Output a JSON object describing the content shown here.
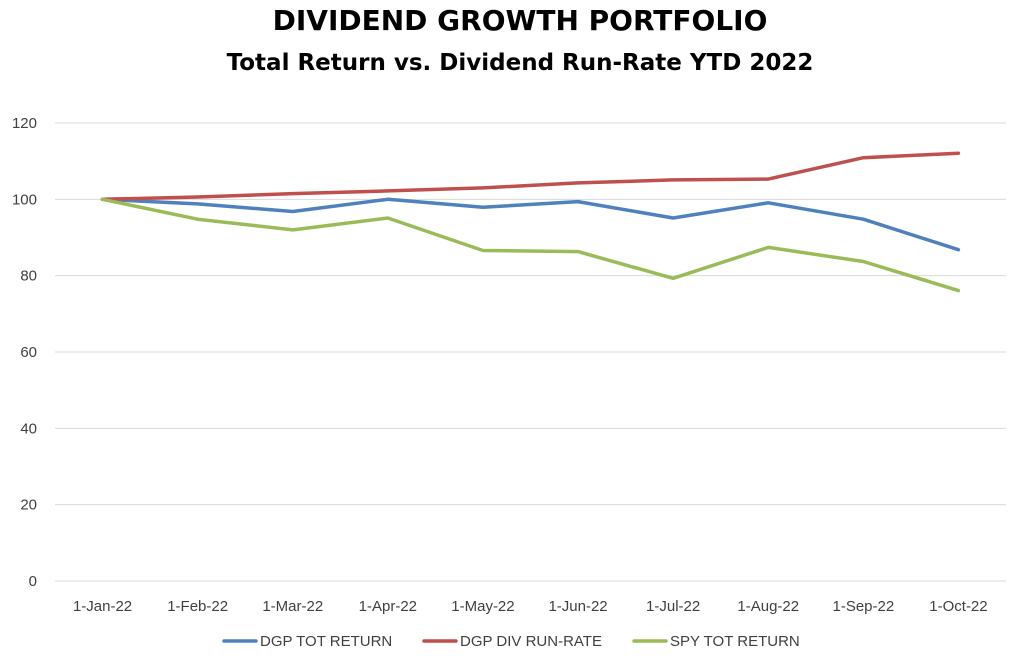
{
  "chart_data": {
    "type": "line",
    "title": "DIVIDEND GROWTH PORTFOLIO",
    "subtitle": "Total Return vs. Dividend Run-Rate YTD 2022",
    "xlabel": "",
    "ylabel": "",
    "categories": [
      "1-Jan-22",
      "1-Feb-22",
      "1-Mar-22",
      "1-Apr-22",
      "1-May-22",
      "1-Jun-22",
      "1-Jul-22",
      "1-Aug-22",
      "1-Sep-22",
      "1-Oct-22"
    ],
    "ylim": [
      0,
      120
    ],
    "yticks": [
      "0",
      "20",
      "40",
      "60",
      "80",
      "100",
      "120"
    ],
    "grid": true,
    "legend_position": "bottom",
    "series": [
      {
        "name": "DGP TOT RETURN",
        "color": "#4f81bd",
        "values": [
          100,
          98.8,
          96.8,
          100,
          97.9,
          99.4,
          95.1,
          99.1,
          94.8,
          86.8
        ]
      },
      {
        "name": "DGP DIV RUN-RATE",
        "color": "#c0504d",
        "values": [
          100,
          100.6,
          101.5,
          102.2,
          103,
          104.3,
          105.1,
          105.3,
          110.9,
          112.1
        ]
      },
      {
        "name": "SPY TOT RETURN",
        "color": "#9bbb59",
        "values": [
          100,
          94.8,
          92,
          95.1,
          86.6,
          86.3,
          79.3,
          87.4,
          83.7,
          76.1
        ]
      }
    ]
  }
}
